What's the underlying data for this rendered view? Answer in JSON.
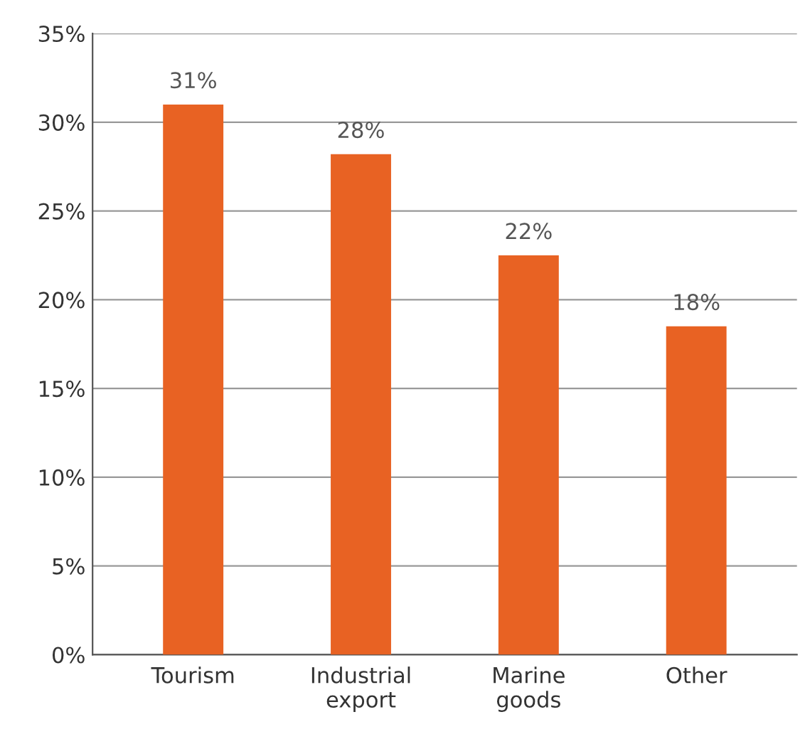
{
  "chart_data": {
    "type": "bar",
    "categories": [
      "Tourism",
      "Industrial\nexport",
      "Marine\ngoods",
      "Other"
    ],
    "values": [
      31.0,
      28.2,
      22.5,
      18.5
    ],
    "value_labels": [
      "31%",
      "28%",
      "22%",
      "18%"
    ],
    "color": "#e86223",
    "ylim": [
      0,
      35
    ],
    "yticks": [
      {
        "value": 0,
        "label": "0%"
      },
      {
        "value": 5,
        "label": "5%"
      },
      {
        "value": 10,
        "label": "10%"
      },
      {
        "value": 15,
        "label": "15%"
      },
      {
        "value": 20,
        "label": "20%"
      },
      {
        "value": 25,
        "label": "25%"
      },
      {
        "value": 30,
        "label": "30%"
      },
      {
        "value": 35,
        "label": "35%"
      }
    ],
    "grid": "y"
  }
}
